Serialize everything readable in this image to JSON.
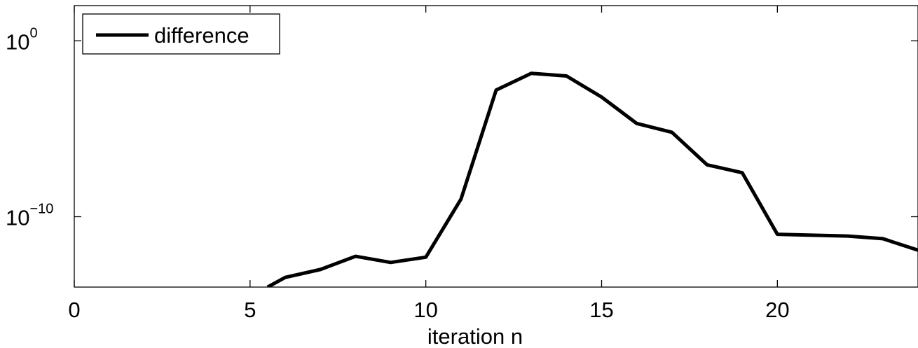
{
  "chart_data": {
    "type": "line",
    "title": "",
    "xlabel": "iteration n",
    "ylabel": "",
    "xlim": [
      0,
      24
    ],
    "ylim_log10": [
      -14,
      2
    ],
    "yscale": "log",
    "grid": false,
    "legend_placement": "top-left",
    "x_ticks": [
      0,
      5,
      10,
      15,
      20
    ],
    "x_tick_labels": [
      "0",
      "5",
      "10",
      "15",
      "20"
    ],
    "y_ticks_log10": [
      0,
      -10
    ],
    "y_tick_labels": [
      {
        "base": "10",
        "exp": "0"
      },
      {
        "base": "10",
        "exp": "−10"
      }
    ],
    "series": [
      {
        "name": "difference",
        "color": "#000000",
        "x": [
          5.5,
          6,
          7,
          8,
          9,
          10,
          11,
          12,
          13,
          14,
          15,
          16,
          17,
          18,
          19,
          20,
          22,
          23,
          24
        ],
        "log10_y": [
          -14.0,
          -13.45,
          -13.0,
          -12.25,
          -12.6,
          -12.3,
          -9.0,
          -2.8,
          -1.85,
          -2.0,
          -3.2,
          -4.7,
          -5.2,
          -7.05,
          -7.5,
          -11.0,
          -11.1,
          -11.25,
          -11.9
        ]
      }
    ]
  }
}
